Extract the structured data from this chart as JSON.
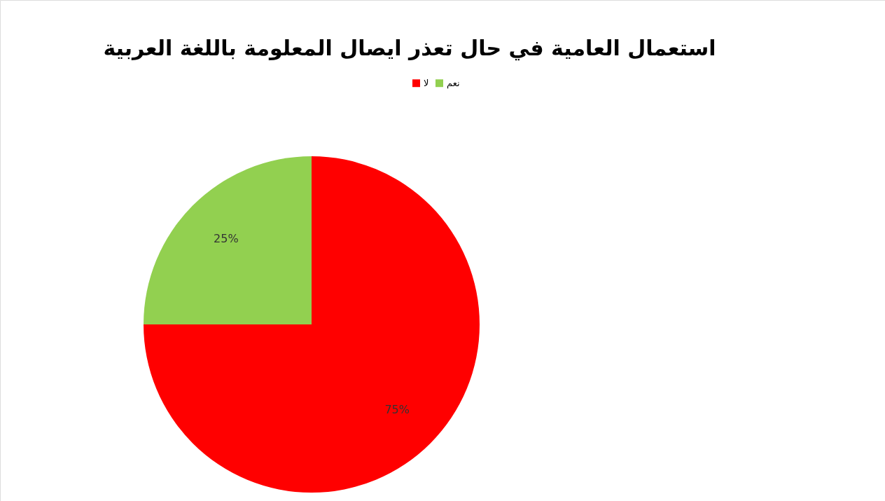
{
  "chart_data": {
    "type": "pie",
    "title": "استعمال العامية في حال تعذر ايصال المعلومة باللغة العربية",
    "categories": [
      "لا",
      "نعم"
    ],
    "values": [
      75,
      25
    ],
    "colors": [
      "#ff0000",
      "#92d050"
    ],
    "value_labels": [
      "75%",
      "25%"
    ],
    "legend": "top"
  }
}
